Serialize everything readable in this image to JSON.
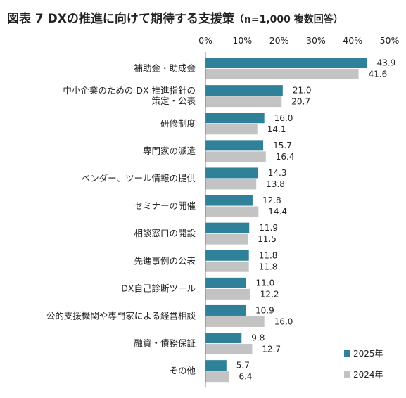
{
  "title": "図表 7  DXの推進に向けて期待する支援策",
  "subtitle": "（n=1,000  複数回答）",
  "colors": {
    "series_2025": "#2e8199",
    "series_2024": "#c3c3c3",
    "axis": "#7a7a7a"
  },
  "chart_data": {
    "type": "bar",
    "orientation": "horizontal",
    "title": "図表 7  DXの推進に向けて期待する支援策",
    "subtitle": "（n=1,000  複数回答）",
    "xlim": [
      0,
      50
    ],
    "tick_labels": [
      "0%",
      "10%",
      "20%",
      "30%",
      "40%",
      "50%"
    ],
    "tick_values": [
      0,
      10,
      20,
      30,
      40,
      50
    ],
    "grid": false,
    "legend_position": "bottom-right",
    "categories": [
      [
        "補助金・助成金"
      ],
      [
        "中小企業のための DX 推進指針の",
        "策定・公表"
      ],
      [
        "研修制度"
      ],
      [
        "専門家の派遣"
      ],
      [
        "ベンダー、ツール情報の提供"
      ],
      [
        "セミナーの開催"
      ],
      [
        "相談窓口の開設"
      ],
      [
        "先進事例の公表"
      ],
      [
        "DX自己診断ツール"
      ],
      [
        "公的支援機関や専門家による経営相談"
      ],
      [
        "融資・債務保証"
      ],
      [
        "その他"
      ]
    ],
    "series": [
      {
        "name": "2025年",
        "values": [
          43.9,
          21.0,
          16.0,
          15.7,
          14.3,
          12.8,
          11.9,
          11.8,
          11.0,
          10.9,
          9.8,
          5.7
        ],
        "labels": [
          "43.9",
          "21.0",
          "16.0",
          "15.7",
          "14.3",
          "12.8",
          "11.9",
          "11.8",
          "11.0",
          "10.9",
          "9.8",
          "5.7"
        ]
      },
      {
        "name": "2024年",
        "values": [
          41.6,
          20.7,
          14.1,
          16.4,
          13.8,
          14.4,
          11.5,
          11.8,
          12.2,
          16.0,
          12.7,
          6.4
        ],
        "labels": [
          "41.6",
          "20.7",
          "14.1",
          "16.4",
          "13.8",
          "14.4",
          "11.5",
          "11.8",
          "12.2",
          "16.0",
          "12.7",
          "6.4"
        ]
      }
    ]
  }
}
